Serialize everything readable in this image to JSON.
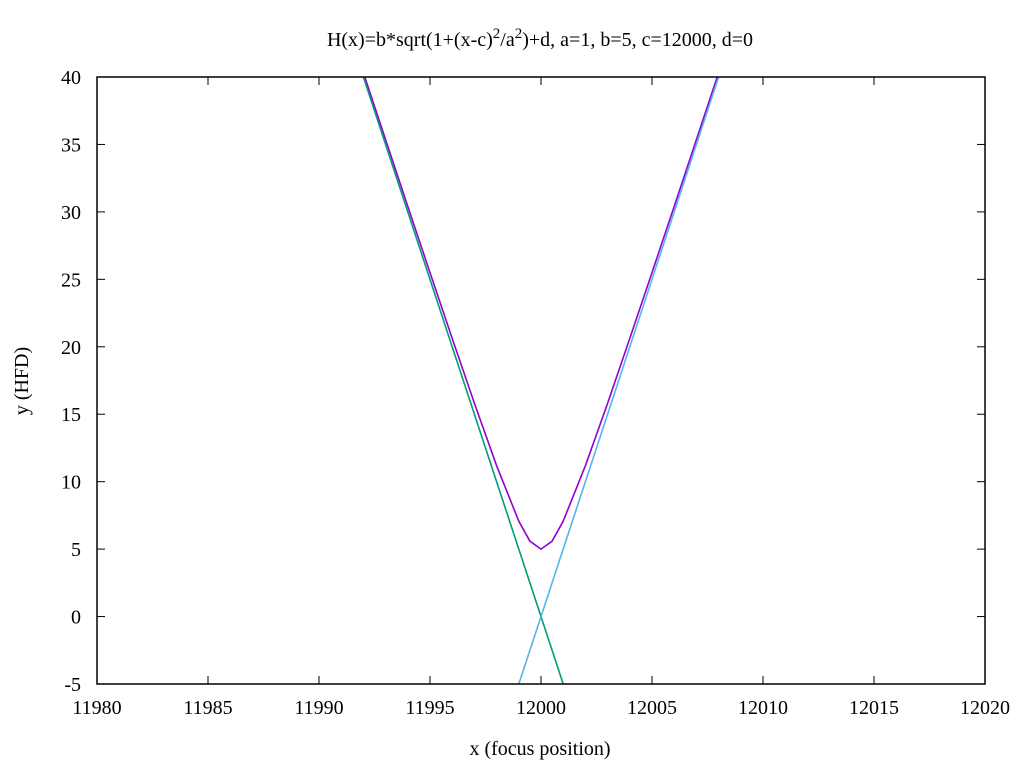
{
  "chart_data": {
    "type": "line",
    "title": {
      "base": "H(x)=b*sqrt(1+(x-c)",
      "exp1": "2",
      "mid": "/a",
      "exp2": "2",
      "tail": ")+d, a=1, b=5, c=12000, d=0"
    },
    "xlabel": "x (focus position)",
    "ylabel": "y (HFD)",
    "xlim": [
      11980,
      12020
    ],
    "ylim": [
      -5,
      40
    ],
    "xticks": [
      11980,
      11985,
      11990,
      11995,
      12000,
      12005,
      12010,
      12015,
      12020
    ],
    "yticks": [
      -5,
      0,
      5,
      10,
      15,
      20,
      25,
      30,
      35,
      40
    ],
    "params": {
      "a": 1,
      "b": 5,
      "c": 12000,
      "d": 0
    },
    "series": [
      {
        "color": "#9400d3",
        "x": [
          11991,
          11992,
          11993,
          11994,
          11995,
          11996,
          11997,
          11998,
          11999,
          11999.5,
          12000,
          12000.5,
          12001,
          12002,
          12003,
          12004,
          12005,
          12006,
          12007,
          12008,
          12009
        ],
        "y": [
          45.28,
          40.31,
          35.36,
          30.41,
          25.5,
          20.62,
          15.81,
          11.18,
          7.07,
          5.59,
          5.0,
          5.59,
          7.07,
          11.18,
          15.81,
          20.62,
          25.5,
          30.41,
          35.36,
          40.31,
          45.28
        ]
      },
      {
        "color": "#009e73",
        "x": [
          11991,
          12001
        ],
        "y": [
          45,
          -5
        ]
      },
      {
        "color": "#56b4e9",
        "x": [
          11999,
          12009
        ],
        "y": [
          -5,
          45
        ]
      }
    ]
  }
}
